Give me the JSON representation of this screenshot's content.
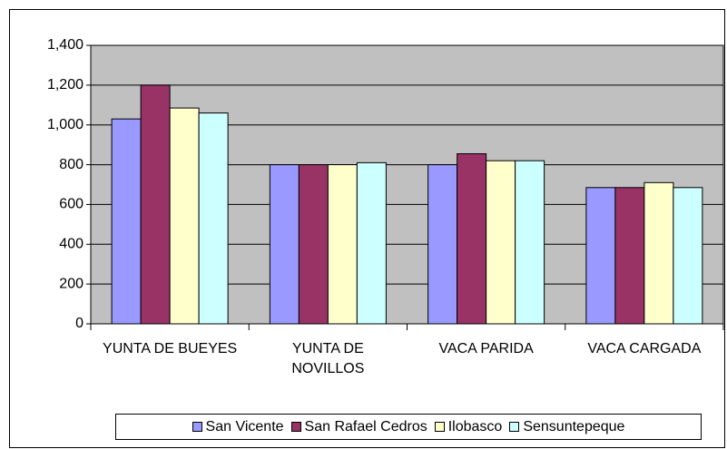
{
  "chart_data": {
    "type": "bar",
    "categories": [
      "YUNTA DE BUEYES",
      "YUNTA DE NOVILLOS",
      "VACA PARIDA",
      "VACA CARGADA"
    ],
    "series": [
      {
        "name": "San Vicente",
        "color": "#9999ff",
        "values": [
          1030,
          800,
          800,
          685
        ]
      },
      {
        "name": "San Rafael Cedros",
        "color": "#993366",
        "values": [
          1200,
          800,
          855,
          685
        ]
      },
      {
        "name": "Ilobasco",
        "color": "#ffffcc",
        "values": [
          1085,
          800,
          820,
          710
        ]
      },
      {
        "name": "Sensuntepeque",
        "color": "#ccffff",
        "values": [
          1060,
          810,
          820,
          685
        ]
      }
    ],
    "ylim": [
      0,
      1400
    ],
    "yticks": [
      0,
      200,
      400,
      600,
      800,
      {
        "value": 1000,
        "label": "1,000"
      },
      {
        "value": 1200,
        "label": "1,200"
      },
      {
        "value": 1400,
        "label": "1,400"
      }
    ],
    "grid": true,
    "plot_background": "#c0c0c0",
    "legend": "bottom"
  }
}
